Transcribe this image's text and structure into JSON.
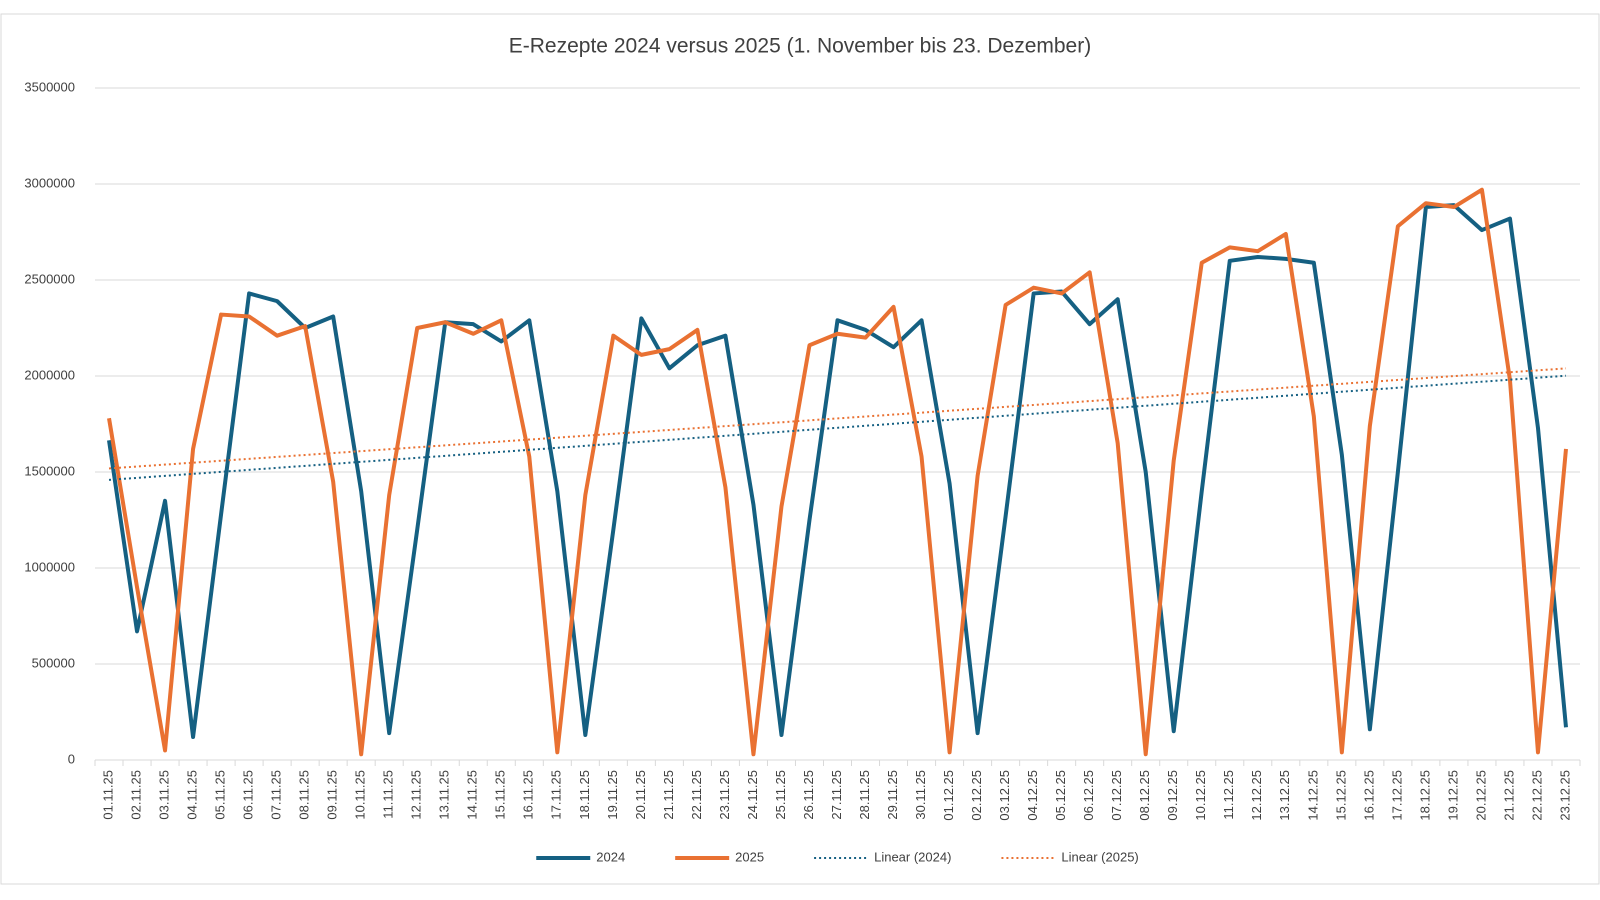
{
  "chart_data": {
    "type": "line",
    "title": "E-Rezepte 2024 versus 2025 (1. November bis 23. Dezember)",
    "categories": [
      "01.11.25",
      "02.11.25",
      "03.11.25",
      "04.11.25",
      "05.11.25",
      "06.11.25",
      "07.11.25",
      "08.11.25",
      "09.11.25",
      "10.11.25",
      "11.11.25",
      "12.11.25",
      "13.11.25",
      "14.11.25",
      "15.11.25",
      "16.11.25",
      "17.11.25",
      "18.11.25",
      "19.11.25",
      "20.11.25",
      "21.11.25",
      "22.11.25",
      "23.11.25",
      "24.11.25",
      "25.11.25",
      "26.11.25",
      "27.11.25",
      "28.11.25",
      "29.11.25",
      "30.11.25",
      "01.12.25",
      "02.12.25",
      "03.12.25",
      "04.12.25",
      "05.12.25",
      "06.12.25",
      "07.12.25",
      "08.12.25",
      "09.12.25",
      "10.12.25",
      "11.12.25",
      "12.12.25",
      "13.12.25",
      "14.12.25",
      "15.12.25",
      "16.12.25",
      "17.12.25",
      "18.12.25",
      "19.12.25",
      "20.12.25",
      "21.12.25",
      "22.12.25",
      "23.12.25"
    ],
    "series": [
      {
        "name": "2024",
        "color": "#156082",
        "values": [
          1665000,
          670000,
          1350000,
          120000,
          1280000,
          2430000,
          2390000,
          2250000,
          2310000,
          1400000,
          140000,
          1200000,
          2280000,
          2270000,
          2180000,
          2290000,
          1400000,
          130000,
          1200000,
          2300000,
          2040000,
          2160000,
          2210000,
          1330000,
          130000,
          1250000,
          2290000,
          2240000,
          2150000,
          2290000,
          1440000,
          140000,
          1270000,
          2430000,
          2440000,
          2270000,
          2400000,
          1500000,
          150000,
          1400000,
          2600000,
          2620000,
          2610000,
          2590000,
          1590000,
          160000,
          1500000,
          2880000,
          2890000,
          2760000,
          2820000,
          1730000,
          170000
        ]
      },
      {
        "name": "2025",
        "color": "#e97132",
        "values": [
          1780000,
          900000,
          50000,
          1620000,
          2320000,
          2310000,
          2210000,
          2260000,
          1450000,
          30000,
          1380000,
          2250000,
          2280000,
          2220000,
          2290000,
          1580000,
          40000,
          1380000,
          2210000,
          2110000,
          2140000,
          2240000,
          1420000,
          30000,
          1320000,
          2160000,
          2220000,
          2200000,
          2360000,
          1580000,
          40000,
          1480000,
          2370000,
          2460000,
          2430000,
          2540000,
          1650000,
          30000,
          1560000,
          2590000,
          2670000,
          2650000,
          2740000,
          1790000,
          40000,
          1740000,
          2780000,
          2900000,
          2880000,
          2970000,
          1980000,
          40000,
          1620000
        ]
      }
    ],
    "trendlines": [
      {
        "name": "Linear (2024)",
        "of": "2024",
        "kind": "linear",
        "color": "#156082"
      },
      {
        "name": "Linear (2025)",
        "of": "2025",
        "kind": "linear",
        "color": "#e97132"
      }
    ],
    "ylim": [
      0,
      3500000
    ],
    "yticks": [
      0,
      500000,
      1000000,
      1500000,
      2000000,
      2500000,
      3000000,
      3500000
    ],
    "grid": true,
    "legend": "bottom"
  }
}
